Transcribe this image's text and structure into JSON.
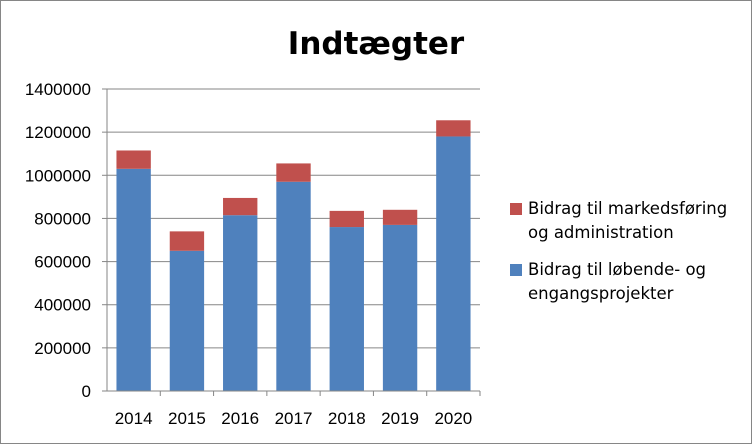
{
  "chart_data": {
    "type": "bar",
    "stacked": true,
    "title": "Indtægter",
    "categories": [
      "2014",
      "2015",
      "2016",
      "2017",
      "2018",
      "2019",
      "2020"
    ],
    "series": [
      {
        "name": "Bidrag til løbende- og engangsprojekter",
        "name_lines": [
          "Bidrag til løbende- og",
          "engangsprojekter"
        ],
        "color": "#4F81BD",
        "values": [
          1030000,
          650000,
          815000,
          970000,
          760000,
          770000,
          1180000
        ]
      },
      {
        "name": "Bidrag til markedsføring og administration",
        "name_lines": [
          "Bidrag til markedsføring",
          "og administration"
        ],
        "color": "#C0504D",
        "values": [
          85000,
          90000,
          80000,
          85000,
          75000,
          70000,
          75000
        ]
      }
    ],
    "ylim": [
      0,
      1400000
    ],
    "yticks": [
      "0",
      "200000",
      "400000",
      "600000",
      "800000",
      "1000000",
      "1200000",
      "1400000"
    ],
    "grid": true,
    "legend": "right"
  }
}
